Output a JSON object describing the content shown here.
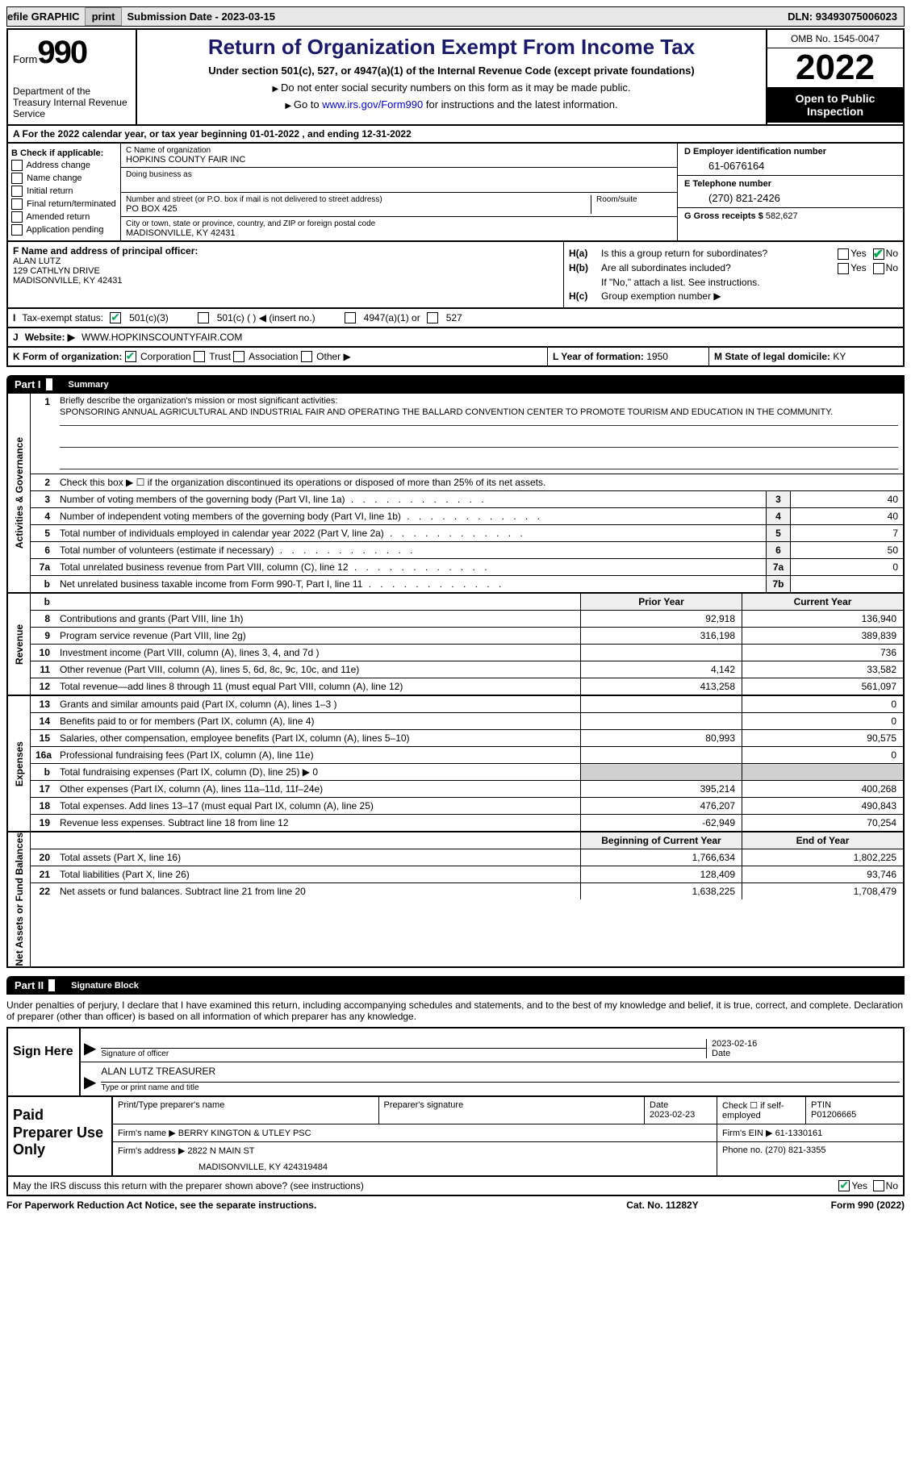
{
  "topbar": {
    "efile": "efile GRAPHIC",
    "print": "print",
    "submission_label": "Submission Date - ",
    "submission_date": "2023-03-15",
    "dln_label": "DLN: ",
    "dln": "93493075006023"
  },
  "header": {
    "form_word": "Form",
    "form_num": "990",
    "dept": "Department of the Treasury Internal Revenue Service",
    "title": "Return of Organization Exempt From Income Tax",
    "subtitle": "Under section 501(c), 527, or 4947(a)(1) of the Internal Revenue Code (except private foundations)",
    "instr1": "Do not enter social security numbers on this form as it may be made public.",
    "instr2_pre": "Go to ",
    "instr2_link": "www.irs.gov/Form990",
    "instr2_post": " for instructions and the latest information.",
    "omb": "OMB No. 1545-0047",
    "year": "2022",
    "otp": "Open to Public Inspection"
  },
  "row_a": "A For the 2022 calendar year, or tax year beginning 01-01-2022   , and ending 12-31-2022",
  "col_b": {
    "hdr": "B Check if applicable:",
    "items": [
      "Address change",
      "Name change",
      "Initial return",
      "Final return/terminated",
      "Amended return",
      "Application pending"
    ]
  },
  "col_c": {
    "name_lbl": "C Name of organization",
    "name": "HOPKINS COUNTY FAIR INC",
    "dba_lbl": "Doing business as",
    "addr_lbl": "Number and street (or P.O. box if mail is not delivered to street address)",
    "room_lbl": "Room/suite",
    "addr": "PO BOX 425",
    "city_lbl": "City or town, state or province, country, and ZIP or foreign postal code",
    "city": "MADISONVILLE, KY  42431"
  },
  "col_d": {
    "ein_lbl": "D Employer identification number",
    "ein": "61-0676164",
    "phone_lbl": "E Telephone number",
    "phone": "(270) 821-2426",
    "gross_lbl": "G Gross receipts $ ",
    "gross": "582,627"
  },
  "section_f": {
    "lbl": "F Name and address of principal officer:",
    "name": "ALAN LUTZ",
    "addr1": "129 CATHLYN DRIVE",
    "addr2": "MADISONVILLE, KY  42431"
  },
  "section_h": {
    "ha_lbl": "H(a)",
    "ha_txt": "Is this a group return for subordinates?",
    "hb_lbl": "H(b)",
    "hb_txt": "Are all subordinates included?",
    "hb_note": "If \"No,\" attach a list. See instructions.",
    "hc_lbl": "H(c)",
    "hc_txt": "Group exemption number ▶",
    "yes": "Yes",
    "no": "No"
  },
  "row_i": {
    "tag": "I",
    "lbl": "Tax-exempt status:",
    "o1": "501(c)(3)",
    "o2": "501(c) (  ) ◀ (insert no.)",
    "o3": "4947(a)(1) or",
    "o4": "527"
  },
  "row_j": {
    "tag": "J",
    "lbl": "Website: ▶",
    "val": "WWW.HOPKINSCOUNTYFAIR.COM"
  },
  "row_k": {
    "k_lbl": "K Form of organization:",
    "k_opts": [
      "Corporation",
      "Trust",
      "Association",
      "Other ▶"
    ],
    "l_lbl": "L Year of formation: ",
    "l_val": "1950",
    "m_lbl": "M State of legal domicile: ",
    "m_val": "KY"
  },
  "part1": {
    "part": "Part I",
    "title": "Summary"
  },
  "summary_gov": {
    "label": "Activities & Governance",
    "r1_num": "1",
    "r1_desc": "Briefly describe the organization's mission or most significant activities:",
    "r1_mission": "SPONSORING ANNUAL AGRICULTURAL AND INDUSTRIAL FAIR AND OPERATING THE BALLARD CONVENTION CENTER TO PROMOTE TOURISM AND EDUCATION IN THE COMMUNITY.",
    "r2_num": "2",
    "r2_desc": "Check this box ▶ ☐ if the organization discontinued its operations or disposed of more than 25% of its net assets.",
    "rows": [
      {
        "n": "3",
        "d": "Number of voting members of the governing body (Part VI, line 1a)",
        "b": "3",
        "v": "40"
      },
      {
        "n": "4",
        "d": "Number of independent voting members of the governing body (Part VI, line 1b)",
        "b": "4",
        "v": "40"
      },
      {
        "n": "5",
        "d": "Total number of individuals employed in calendar year 2022 (Part V, line 2a)",
        "b": "5",
        "v": "7"
      },
      {
        "n": "6",
        "d": "Total number of volunteers (estimate if necessary)",
        "b": "6",
        "v": "50"
      },
      {
        "n": "7a",
        "d": "Total unrelated business revenue from Part VIII, column (C), line 12",
        "b": "7a",
        "v": "0"
      },
      {
        "n": "b",
        "d": "Net unrelated business taxable income from Form 990-T, Part I, line 11",
        "b": "7b",
        "v": ""
      }
    ]
  },
  "two_col": {
    "h1": "Prior Year",
    "h2": "Current Year",
    "h3": "Beginning of Current Year",
    "h4": "End of Year"
  },
  "revenue": {
    "label": "Revenue",
    "rows": [
      {
        "n": "8",
        "d": "Contributions and grants (Part VIII, line 1h)",
        "v1": "92,918",
        "v2": "136,940"
      },
      {
        "n": "9",
        "d": "Program service revenue (Part VIII, line 2g)",
        "v1": "316,198",
        "v2": "389,839"
      },
      {
        "n": "10",
        "d": "Investment income (Part VIII, column (A), lines 3, 4, and 7d )",
        "v1": "",
        "v2": "736"
      },
      {
        "n": "11",
        "d": "Other revenue (Part VIII, column (A), lines 5, 6d, 8c, 9c, 10c, and 11e)",
        "v1": "4,142",
        "v2": "33,582"
      },
      {
        "n": "12",
        "d": "Total revenue—add lines 8 through 11 (must equal Part VIII, column (A), line 12)",
        "v1": "413,258",
        "v2": "561,097"
      }
    ]
  },
  "expenses": {
    "label": "Expenses",
    "rows": [
      {
        "n": "13",
        "d": "Grants and similar amounts paid (Part IX, column (A), lines 1–3 )",
        "v1": "",
        "v2": "0"
      },
      {
        "n": "14",
        "d": "Benefits paid to or for members (Part IX, column (A), line 4)",
        "v1": "",
        "v2": "0"
      },
      {
        "n": "15",
        "d": "Salaries, other compensation, employee benefits (Part IX, column (A), lines 5–10)",
        "v1": "80,993",
        "v2": "90,575"
      },
      {
        "n": "16a",
        "d": "Professional fundraising fees (Part IX, column (A), line 11e)",
        "v1": "",
        "v2": "0"
      },
      {
        "n": "b",
        "d": "Total fundraising expenses (Part IX, column (D), line 25) ▶ 0",
        "v1": "shade",
        "v2": "shade"
      },
      {
        "n": "17",
        "d": "Other expenses (Part IX, column (A), lines 11a–11d, 11f–24e)",
        "v1": "395,214",
        "v2": "400,268"
      },
      {
        "n": "18",
        "d": "Total expenses. Add lines 13–17 (must equal Part IX, column (A), line 25)",
        "v1": "476,207",
        "v2": "490,843"
      },
      {
        "n": "19",
        "d": "Revenue less expenses. Subtract line 18 from line 12",
        "v1": "-62,949",
        "v2": "70,254"
      }
    ]
  },
  "netassets": {
    "label": "Net Assets or Fund Balances",
    "rows": [
      {
        "n": "20",
        "d": "Total assets (Part X, line 16)",
        "v1": "1,766,634",
        "v2": "1,802,225"
      },
      {
        "n": "21",
        "d": "Total liabilities (Part X, line 26)",
        "v1": "128,409",
        "v2": "93,746"
      },
      {
        "n": "22",
        "d": "Net assets or fund balances. Subtract line 21 from line 20",
        "v1": "1,638,225",
        "v2": "1,708,479"
      }
    ]
  },
  "part2": {
    "part": "Part II",
    "title": "Signature Block"
  },
  "penalties": "Under penalties of perjury, I declare that I have examined this return, including accompanying schedules and statements, and to the best of my knowledge and belief, it is true, correct, and complete. Declaration of preparer (other than officer) is based on all information of which preparer has any knowledge.",
  "sign": {
    "left": "Sign Here",
    "sig_lbl": "Signature of officer",
    "date_lbl": "Date",
    "date_val": "2023-02-16",
    "name_val": "ALAN LUTZ  TREASURER",
    "name_lbl": "Type or print name and title"
  },
  "prep": {
    "left": "Paid Preparer Use Only",
    "c1": "Print/Type preparer's name",
    "c2": "Preparer's signature",
    "c3": "Date",
    "c3v": "2023-02-23",
    "c4": "Check ☐ if self-employed",
    "c5": "PTIN",
    "c5v": "P01206665",
    "firm_lbl": "Firm's name    ▶ ",
    "firm": "BERRY KINGTON & UTLEY PSC",
    "ein_lbl": "Firm's EIN ▶ ",
    "ein": "61-1330161",
    "addr_lbl": "Firm's address ▶ ",
    "addr": "2822 N MAIN ST",
    "addr2": "MADISONVILLE, KY  424319484",
    "phone_lbl": "Phone no. ",
    "phone": "(270) 821-3355"
  },
  "footer": {
    "q": "May the IRS discuss this return with the preparer shown above? (see instructions)",
    "yes": "Yes",
    "no": "No"
  },
  "bottom": {
    "l": "For Paperwork Reduction Act Notice, see the separate instructions.",
    "m": "Cat. No. 11282Y",
    "r": "Form 990 (2022)"
  }
}
